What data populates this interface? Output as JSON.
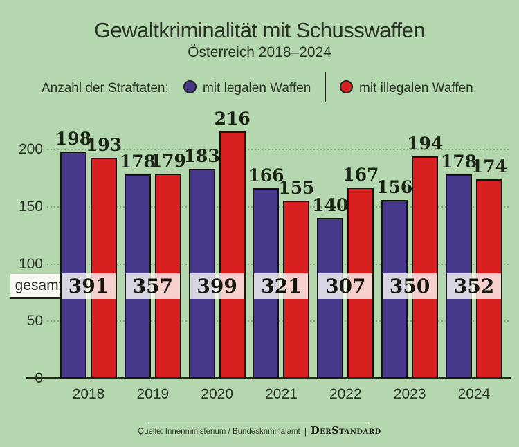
{
  "header": {
    "title": "Gewaltkriminalität mit Schusswaffen",
    "subtitle": "Österreich 2018–2024"
  },
  "legend": {
    "label": "Anzahl der Straftaten:",
    "series": [
      {
        "name": "mit legalen Waffen",
        "color": "#47398c"
      },
      {
        "name": "mit illegalen Waffen",
        "color": "#d92020"
      }
    ]
  },
  "chart_data": {
    "type": "bar",
    "title": "Gewaltkriminalität mit Schusswaffen",
    "subtitle": "Österreich 2018–2024",
    "categories": [
      "2018",
      "2019",
      "2020",
      "2021",
      "2022",
      "2023",
      "2024"
    ],
    "series": [
      {
        "name": "mit legalen Waffen",
        "color": "#47398c",
        "values": [
          198,
          178,
          183,
          166,
          140,
          156,
          178
        ]
      },
      {
        "name": "mit illegalen Waffen",
        "color": "#d92020",
        "values": [
          193,
          179,
          216,
          155,
          167,
          194,
          174
        ]
      }
    ],
    "totals": [
      391,
      357,
      399,
      321,
      307,
      350,
      352
    ],
    "totals_label": "gesamt",
    "ylabel": "",
    "xlabel": "",
    "yticks": [
      0,
      50,
      100,
      150,
      200
    ],
    "ylim": [
      0,
      230
    ],
    "grid": "horizontal dotted",
    "legend_position": "top",
    "colors": {
      "background": "#b4d7af",
      "bar_outline": "#15150e",
      "gridline": "#7ea878",
      "text": "#2b3326"
    }
  },
  "footer": {
    "source": "Quelle: Innenministerium / Bundeskriminalamt",
    "brand": "DerStandard"
  }
}
